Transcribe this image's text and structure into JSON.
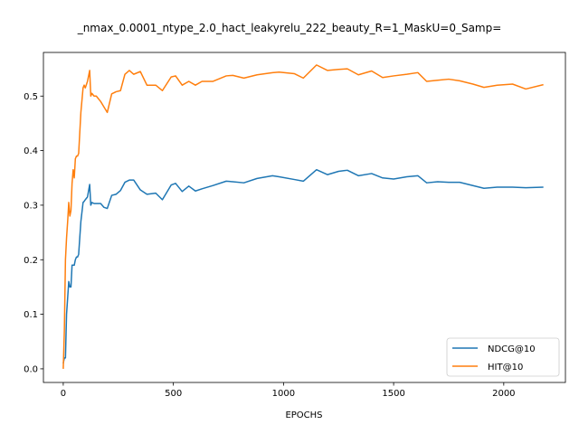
{
  "chart_data": {
    "type": "line",
    "title": "_nmax_0.0001_ntype_2.0_hact_leakyrelu_222_beauty_R=1_MaskU=0_Samp=",
    "xlabel": "EPOCHS",
    "ylabel": "",
    "xlim": [
      -90,
      2280
    ],
    "ylim": [
      -0.025,
      0.58
    ],
    "xticks": [
      0,
      500,
      1000,
      1500,
      2000
    ],
    "yticks": [
      0.0,
      0.1,
      0.2,
      0.3,
      0.4,
      0.5
    ],
    "ytick_labels": [
      "0.0",
      "0.1",
      "0.2",
      "0.3",
      "0.4",
      "0.5"
    ],
    "grid": false,
    "legend_position": "lower-right",
    "series": [
      {
        "name": "NDCG@10",
        "color": "#1f77b4",
        "x": [
          0,
          5,
          10,
          15,
          20,
          25,
          30,
          35,
          40,
          45,
          50,
          55,
          60,
          65,
          70,
          80,
          90,
          95,
          100,
          110,
          120,
          125,
          130,
          140,
          150,
          170,
          185,
          200,
          220,
          240,
          260,
          280,
          300,
          320,
          350,
          380,
          420,
          450,
          490,
          510,
          540,
          570,
          600,
          630,
          680,
          740,
          770,
          820,
          880,
          950,
          980,
          1050,
          1090,
          1150,
          1200,
          1250,
          1290,
          1340,
          1400,
          1450,
          1500,
          1560,
          1610,
          1650,
          1700,
          1750,
          1800,
          1860,
          1910,
          1970,
          2040,
          2100,
          2180
        ],
        "values": [
          0.01,
          0.02,
          0.02,
          0.1,
          0.13,
          0.16,
          0.15,
          0.15,
          0.19,
          0.19,
          0.19,
          0.2,
          0.205,
          0.205,
          0.21,
          0.27,
          0.305,
          0.307,
          0.31,
          0.315,
          0.338,
          0.3,
          0.305,
          0.303,
          0.303,
          0.303,
          0.296,
          0.294,
          0.318,
          0.32,
          0.327,
          0.342,
          0.346,
          0.346,
          0.328,
          0.32,
          0.322,
          0.31,
          0.337,
          0.34,
          0.325,
          0.335,
          0.326,
          0.33,
          0.336,
          0.344,
          0.343,
          0.341,
          0.349,
          0.354,
          0.352,
          0.347,
          0.344,
          0.365,
          0.356,
          0.362,
          0.364,
          0.354,
          0.358,
          0.35,
          0.348,
          0.352,
          0.354,
          0.341,
          0.343,
          0.342,
          0.342,
          0.336,
          0.331,
          0.333,
          0.333,
          0.332,
          0.333
        ]
      },
      {
        "name": "HIT@10",
        "color": "#ff7f0e",
        "x": [
          0,
          5,
          10,
          15,
          20,
          25,
          30,
          35,
          40,
          45,
          50,
          55,
          60,
          65,
          70,
          80,
          90,
          95,
          100,
          110,
          120,
          125,
          130,
          140,
          150,
          170,
          185,
          200,
          220,
          240,
          260,
          280,
          300,
          320,
          350,
          380,
          420,
          450,
          490,
          510,
          540,
          570,
          600,
          630,
          680,
          740,
          770,
          820,
          880,
          950,
          980,
          1050,
          1090,
          1150,
          1200,
          1250,
          1290,
          1340,
          1400,
          1450,
          1500,
          1560,
          1610,
          1650,
          1700,
          1750,
          1800,
          1860,
          1910,
          1970,
          2040,
          2100,
          2180
        ],
        "values": [
          0.0,
          0.07,
          0.2,
          0.24,
          0.27,
          0.305,
          0.28,
          0.29,
          0.34,
          0.365,
          0.35,
          0.385,
          0.39,
          0.39,
          0.395,
          0.47,
          0.515,
          0.52,
          0.515,
          0.527,
          0.547,
          0.5,
          0.505,
          0.5,
          0.5,
          0.49,
          0.48,
          0.47,
          0.504,
          0.508,
          0.51,
          0.54,
          0.547,
          0.54,
          0.545,
          0.52,
          0.52,
          0.51,
          0.535,
          0.537,
          0.52,
          0.527,
          0.52,
          0.527,
          0.527,
          0.537,
          0.538,
          0.533,
          0.539,
          0.543,
          0.544,
          0.541,
          0.533,
          0.557,
          0.547,
          0.549,
          0.55,
          0.539,
          0.546,
          0.534,
          0.537,
          0.54,
          0.543,
          0.527,
          0.529,
          0.531,
          0.528,
          0.522,
          0.516,
          0.52,
          0.522,
          0.513,
          0.521
        ]
      }
    ]
  }
}
